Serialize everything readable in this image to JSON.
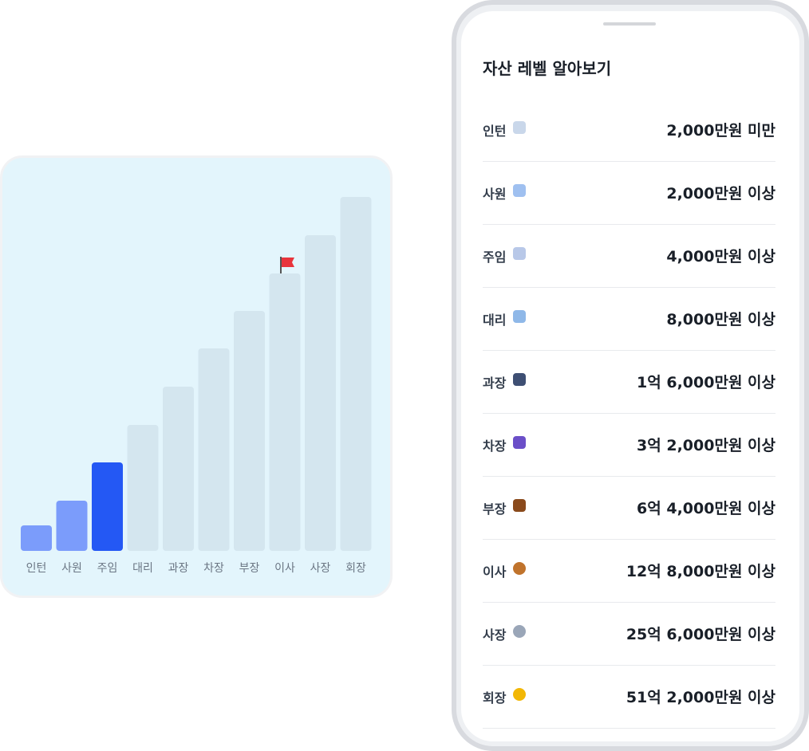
{
  "chart_data": {
    "type": "bar",
    "categories": [
      "인턴",
      "사원",
      "주임",
      "대리",
      "과장",
      "차장",
      "부장",
      "이사",
      "사장",
      "회장"
    ],
    "values": [
      32,
      63,
      111,
      158,
      206,
      254,
      301,
      348,
      396,
      444
    ],
    "colors": [
      "#7b9cfb",
      "#7b9cfb",
      "#2458f4",
      "#d4e6ef",
      "#d4e6ef",
      "#d4e6ef",
      "#d4e6ef",
      "#d4e6ef",
      "#d4e6ef",
      "#d4e6ef"
    ]
  },
  "panel": {
    "title": "자산 레벨 알아보기",
    "rows": [
      {
        "label": "인턴",
        "value": "2,000만원 미만"
      },
      {
        "label": "사원",
        "value": "2,000만원 이상"
      },
      {
        "label": "주임",
        "value": "4,000만원 이상"
      },
      {
        "label": "대리",
        "value": "8,000만원 이상"
      },
      {
        "label": "과장",
        "value": "1억 6,000만원 이상"
      },
      {
        "label": "차장",
        "value": "3억 2,000만원 이상"
      },
      {
        "label": "부장",
        "value": "6억 4,000만원 이상"
      },
      {
        "label": "이사",
        "value": "12억 8,000만원 이상"
      },
      {
        "label": "사장",
        "value": "25억 6,000만원 이상"
      },
      {
        "label": "회장",
        "value": "51억 2,000만원 이상"
      }
    ]
  }
}
